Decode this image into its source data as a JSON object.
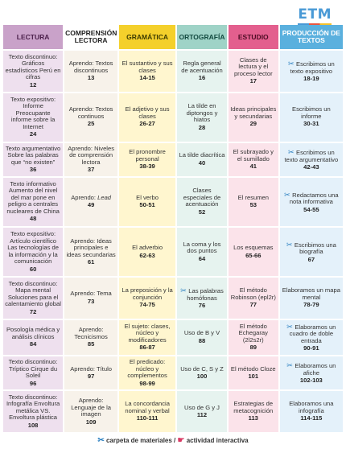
{
  "logo": "ETM",
  "headers": [
    "LECTURA",
    "COMPRENSIÓN LECTORA",
    "GRAMÁTICA",
    "ORTOGRAFÍA",
    "ESTUDIO",
    "PRODUCCIÓN DE TEXTOS"
  ],
  "rows": [
    {
      "lectura": "Texto discontinuo: Gráficos estadísticos Perú en cifras",
      "lectura_num": "12",
      "comp": "Aprendo: Textos discontinuos",
      "comp_num": "13",
      "gram": "El sustantivo y sus clases",
      "gram_num": "14-15",
      "orto": "Regla general de acentuación",
      "orto_num": "16",
      "est": "Clases de lectura y el proceso lector",
      "est_num": "17",
      "prod": "Escribimos un texto expositivo",
      "prod_num": "18-19",
      "prod_icon": "scissors"
    },
    {
      "lectura": "Texto expositivo: Informe Preocupante informe sobre la Internet",
      "lectura_num": "24",
      "comp": "Aprendo: Textos continuos",
      "comp_num": "25",
      "gram": "El adjetivo y sus clases",
      "gram_num": "26-27",
      "orto": "La tilde en diptongos y hiatos",
      "orto_num": "28",
      "est": "Ideas principales y secundarias",
      "est_num": "29",
      "prod": "Escribimos un informe",
      "prod_num": "30-31",
      "prod_icon": ""
    },
    {
      "lectura": "Texto argumentativo Sobre las palabras que “no existen”",
      "lectura_num": "36",
      "comp": "Aprendo: Niveles de comprensión lectora",
      "comp_num": "37",
      "gram": "El pronombre personal",
      "gram_num": "38-39",
      "orto": "La tilde diacrítica",
      "orto_num": "40",
      "est": "El subrayado y el sumillado",
      "est_num": "41",
      "prod": "Escribimos un texto argumentativo",
      "prod_num": "42-43",
      "prod_icon": "scissors"
    },
    {
      "lectura": "Texto informativo Aumento del nivel del mar pone en peligro a centrales nucleares de China",
      "lectura_num": "48",
      "comp": "Aprendo: Lead",
      "comp_num": "49",
      "comp_italic": "true",
      "gram": "El verbo",
      "gram_num": "50-51",
      "orto": "Clases especiales de acentuación",
      "orto_num": "52",
      "est": "El resumen",
      "est_num": "53",
      "prod": "Redactamos una nota informativa",
      "prod_num": "54-55",
      "prod_icon": "scissors"
    },
    {
      "lectura": "Texto expositivo: Artículo científico Las tecnologías de la información y la comunicación",
      "lectura_num": "60",
      "comp": "Aprendo: Ideas principales e ideas secundarias",
      "comp_num": "61",
      "gram": "El adverbio",
      "gram_num": "62-63",
      "orto": "La coma y los dos puntos",
      "orto_num": "64",
      "est": "Los esquemas",
      "est_num": "65-66",
      "prod": "Escribimos una biografía",
      "prod_num": "67",
      "prod_icon": "scissors"
    },
    {
      "lectura": "Texto discontinuo: Mapa mental Soluciones para el calentamiento global",
      "lectura_num": "72",
      "comp": "Aprendo: Tema",
      "comp_num": "73",
      "gram": "La preposición y la conjunción",
      "gram_num": "74-75",
      "orto": "Las palabras homófonas",
      "orto_num": "76",
      "orto_icon": "scissors",
      "est": "El método Robinson (epl2r)",
      "est_num": "77",
      "prod": "Elaboramos un mapa mental",
      "prod_num": "78-79",
      "prod_icon": ""
    },
    {
      "lectura": "Posología médica y análisis clínicos",
      "lectura_num": "84",
      "comp": "Aprendo: Tecnicismos",
      "comp_num": "85",
      "gram": "El sujeto: clases, núcleo y modificadores",
      "gram_num": "86-87",
      "orto": "Uso de B y V",
      "orto_num": "88",
      "est": "El método Echegaray (2l2s2r)",
      "est_num": "89",
      "prod": "Elaboramos un cuadro de doble entrada",
      "prod_num": "90-91",
      "prod_icon": "scissors"
    },
    {
      "lectura": "Texto discontinuo: Tríptico Cirque du Soleil",
      "lectura_num": "96",
      "comp": "Aprendo: Título",
      "comp_num": "97",
      "gram": "El predicado: núcleo y complementos",
      "gram_num": "98-99",
      "orto": "Uso de C, S y Z",
      "orto_num": "100",
      "est": "El método Cloze",
      "est_num": "101",
      "prod": "Elaboramos un afiche",
      "prod_num": "102-103",
      "prod_icon": "scissors"
    },
    {
      "lectura": "Texto discontinuo: Infografía Envoltura metálica VS. Envoltura plástica",
      "lectura_num": "108",
      "comp": "Aprendo: Lenguaje de la imagen",
      "comp_num": "109",
      "gram": "La concordancia nominal y verbal",
      "gram_num": "110-111",
      "orto": "Uso de G y J",
      "orto_num": "112",
      "est": "Estrategias de metacognición",
      "est_num": "113",
      "prod": "Elaboramos una infografía",
      "prod_num": "114-115",
      "prod_icon": ""
    }
  ],
  "legend": {
    "materials": "carpeta de materiales /",
    "interactive": "actividad interactiva"
  },
  "colors": {
    "lectura": "#c9a2c9",
    "gramatica": "#f4d02b",
    "ortografia": "#9fd3c7",
    "estudio": "#e35f8e",
    "produccion": "#5ab0de"
  }
}
